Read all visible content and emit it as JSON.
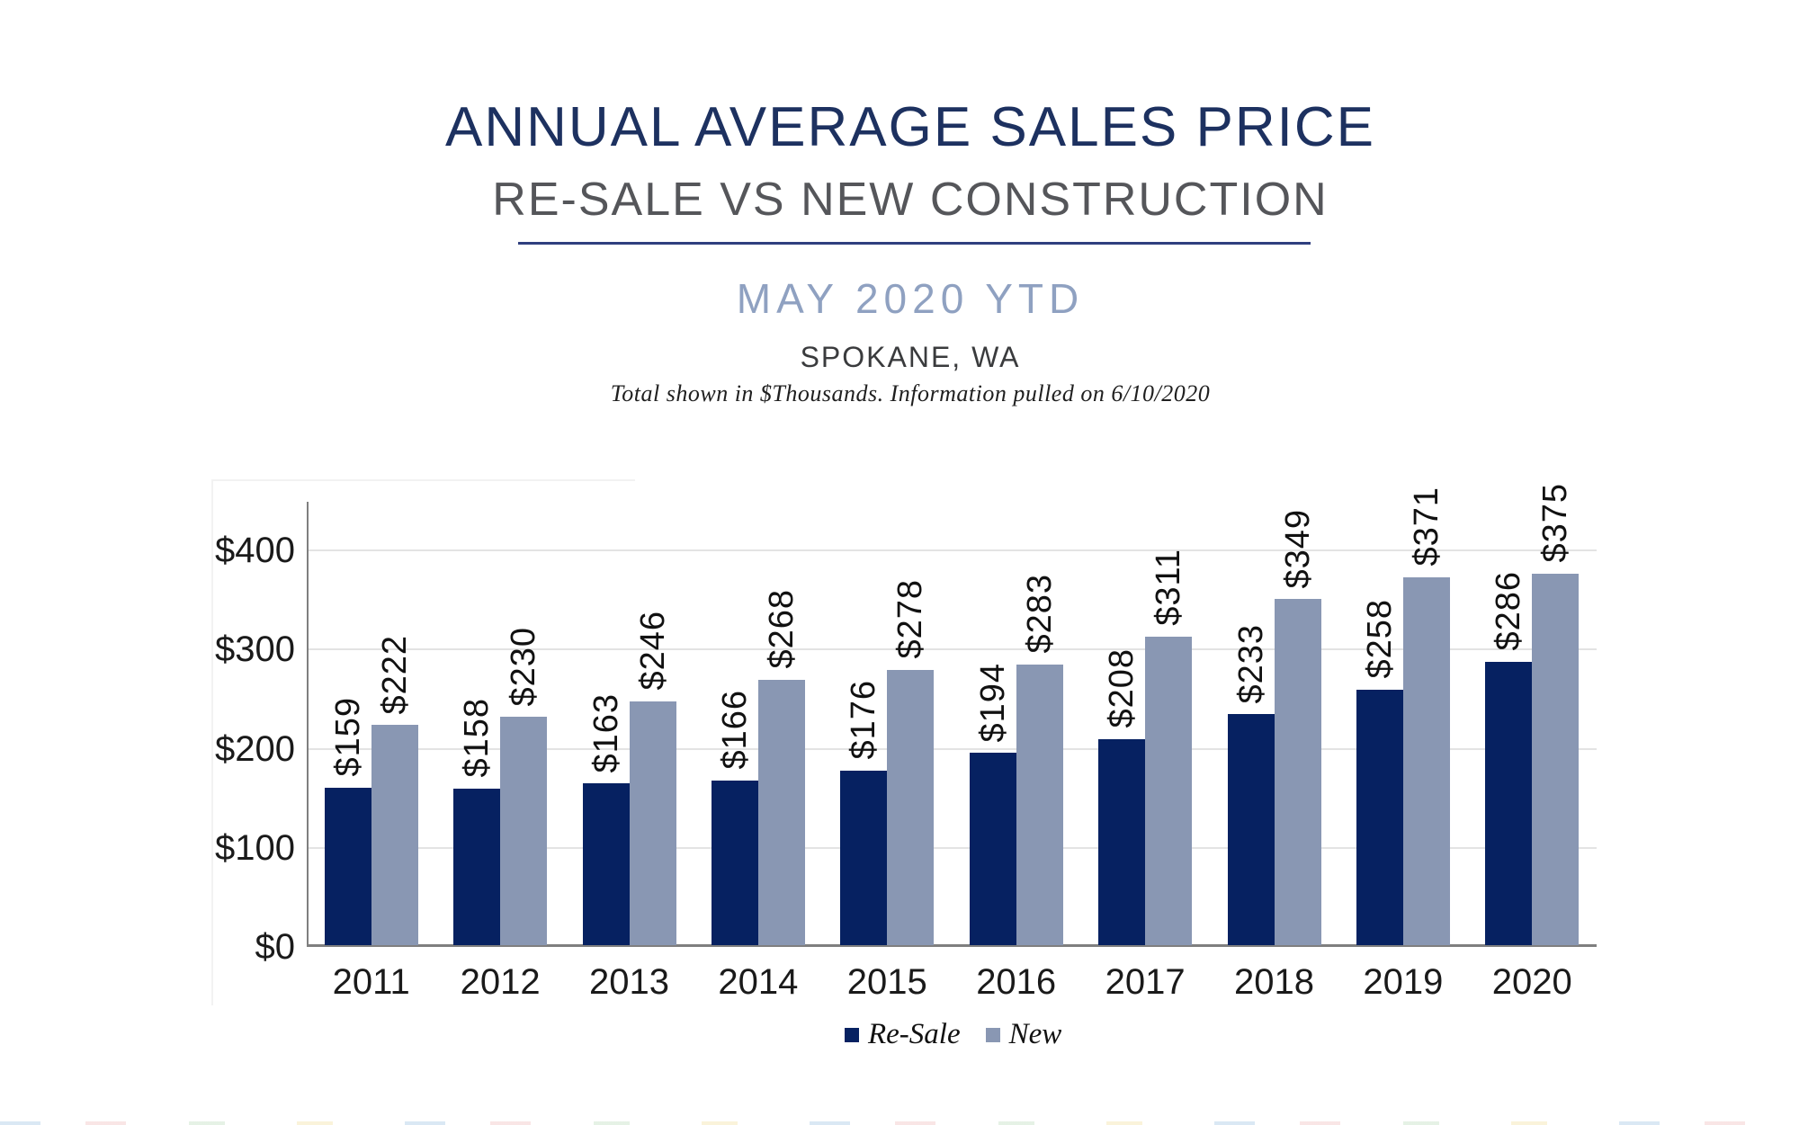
{
  "page": {
    "title": "ANNUAL AVERAGE SALES PRICE",
    "subtitle": "RE-SALE VS NEW CONSTRUCTION",
    "period": "MAY 2020 YTD",
    "location": "SPOKANE, WA",
    "note": "Total shown in $Thousands. Information pulled on 6/10/2020"
  },
  "colors": {
    "title_navy": "#1d3160",
    "subtitle_gray": "#55565a",
    "period_blue": "#8fa1c1",
    "divider_navy": "#2f3f7e",
    "resale_navy": "#062161",
    "new_gray_blue": "#8997b3",
    "axis_gray": "#7f7f7f",
    "gridline_gray": "#e3e3e3"
  },
  "chart_data": {
    "type": "bar",
    "title": "ANNUAL AVERAGE SALES PRICE — RE-SALE VS NEW CONSTRUCTION",
    "subtitle": "MAY 2020 YTD, SPOKANE, WA",
    "units_note": "Total shown in $Thousands. Information pulled on 6/10/2020",
    "categories": [
      "2011",
      "2012",
      "2013",
      "2014",
      "2015",
      "2016",
      "2017",
      "2018",
      "2019",
      "2020"
    ],
    "series": [
      {
        "name": "Re-Sale",
        "color_key": "resale_navy",
        "values": [
          159,
          158,
          163,
          166,
          176,
          194,
          208,
          233,
          258,
          286
        ]
      },
      {
        "name": "New",
        "color_key": "new_gray_blue",
        "values": [
          222,
          230,
          246,
          268,
          278,
          283,
          311,
          349,
          371,
          375
        ]
      }
    ],
    "value_prefix": "$",
    "data_labels": "rotated-90-above-bars",
    "xlabel": "",
    "ylabel": "",
    "yticks": [
      "$0",
      "$100",
      "$200",
      "$300",
      "$400"
    ],
    "ytick_values": [
      0,
      100,
      200,
      300,
      400
    ],
    "ylim": [
      0,
      450
    ],
    "grid": "horizontal",
    "legend_position": "top-left-inside"
  }
}
